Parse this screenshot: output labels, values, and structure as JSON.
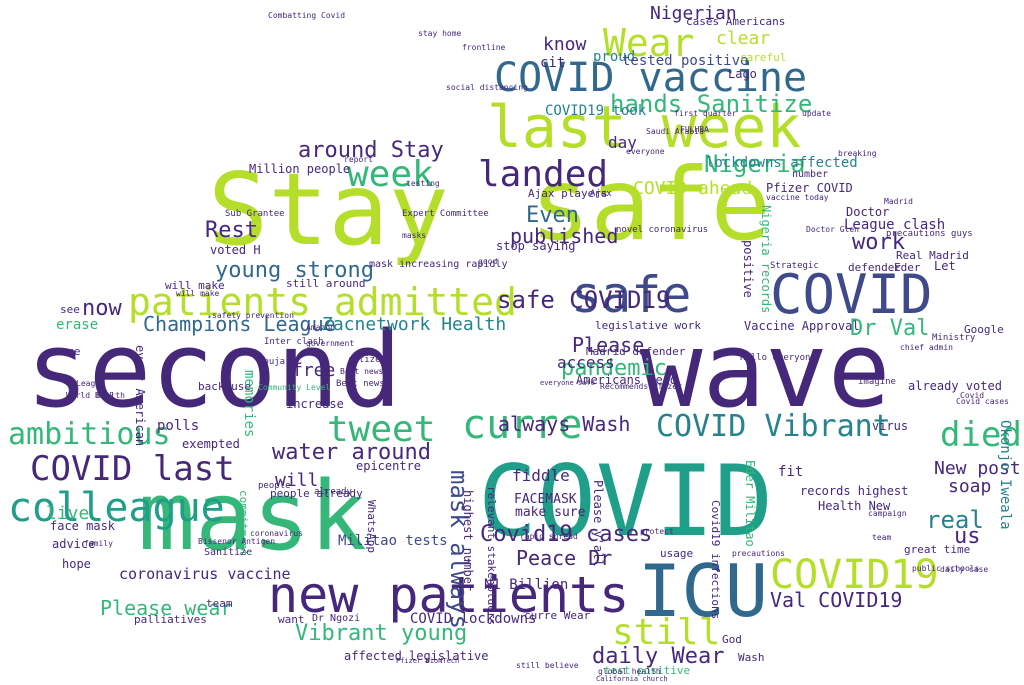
{
  "palette": {
    "background": "#ffffff",
    "dark_purple": "#46287a",
    "indigo": "#3e4a89",
    "blue": "#31688e",
    "teal": "#26828e",
    "green_teal": "#1f9e89",
    "green": "#35b779",
    "lime_green": "#6ece58",
    "yellow_green": "#b5de2b",
    "yellow": "#d8e219"
  },
  "words": [
    {
      "text": "second"
    },
    {
      "text": "wave"
    },
    {
      "text": "Stay"
    },
    {
      "text": "safe"
    },
    {
      "text": "COVID"
    },
    {
      "text": "mask"
    },
    {
      "text": "last week"
    },
    {
      "text": "new patients"
    },
    {
      "text": "ICU"
    },
    {
      "text": "COVID vaccine"
    },
    {
      "text": "safe"
    },
    {
      "text": "COVID"
    },
    {
      "text": "patients admitted"
    },
    {
      "text": "week"
    },
    {
      "text": "landed"
    },
    {
      "text": "Wear"
    },
    {
      "text": "colleague"
    },
    {
      "text": "COVID19"
    },
    {
      "text": "curre"
    },
    {
      "text": "tweet"
    },
    {
      "text": "ambitious"
    },
    {
      "text": "COVID last"
    },
    {
      "text": "died"
    },
    {
      "text": "COVID Vibrant"
    },
    {
      "text": "still"
    },
    {
      "text": "young strong"
    },
    {
      "text": "hands Sanitize"
    },
    {
      "text": "Nigeria"
    },
    {
      "text": "around Stay"
    },
    {
      "text": "COVID ahead"
    },
    {
      "text": "Rest"
    },
    {
      "text": "Even"
    },
    {
      "text": "published"
    },
    {
      "text": "safe COVID19"
    },
    {
      "text": "work"
    },
    {
      "text": "Dr Val"
    },
    {
      "text": "pandemic"
    },
    {
      "text": "Please"
    },
    {
      "text": "always Wash"
    },
    {
      "text": "water around"
    },
    {
      "text": "Champions League"
    },
    {
      "text": "Zacnetwork Health"
    },
    {
      "text": "now"
    },
    {
      "text": "Covid19 cases"
    },
    {
      "text": "Peace Dr"
    },
    {
      "text": "Vibrant young"
    },
    {
      "text": "daily Wear"
    },
    {
      "text": "Please wear"
    },
    {
      "text": "Val COVID19"
    },
    {
      "text": "New post"
    },
    {
      "text": "soap"
    },
    {
      "text": "real"
    },
    {
      "text": "us"
    },
    {
      "text": "live"
    },
    {
      "text": "will"
    },
    {
      "text": "free"
    },
    {
      "text": "know"
    },
    {
      "text": "cit"
    },
    {
      "text": "proud"
    },
    {
      "text": "tested positive"
    },
    {
      "text": "Nigerian"
    },
    {
      "text": "clear"
    },
    {
      "text": "COVID19 took"
    },
    {
      "text": "day"
    },
    {
      "text": "lockdowns affected"
    },
    {
      "text": "League clash"
    },
    {
      "text": "Pfizer COVID"
    },
    {
      "text": "Doctor"
    },
    {
      "text": "Real Madrid"
    },
    {
      "text": "Vaccine Approval"
    },
    {
      "text": "mask always"
    },
    {
      "text": "COVID lockdowns"
    },
    {
      "text": "N1 Billion"
    },
    {
      "text": "FACEMASK"
    },
    {
      "text": "make sure"
    },
    {
      "text": "fiddle"
    },
    {
      "text": "access"
    },
    {
      "text": "Americans head"
    },
    {
      "text": "Madrid defender"
    },
    {
      "text": "legislative work"
    },
    {
      "text": "Health New"
    },
    {
      "text": "records highest"
    },
    {
      "text": "fit"
    },
    {
      "text": "coronavirus vaccine"
    },
    {
      "text": "face mask"
    },
    {
      "text": "memories"
    },
    {
      "text": "polls"
    },
    {
      "text": "people already"
    },
    {
      "text": "Militao tests"
    },
    {
      "text": "affected legislative"
    },
    {
      "text": "advice"
    },
    {
      "text": "hope"
    },
    {
      "text": "team"
    },
    {
      "text": "exempted"
    },
    {
      "text": "Million people"
    },
    {
      "text": "voted H"
    },
    {
      "text": "will make"
    },
    {
      "text": "see"
    },
    {
      "text": "come"
    },
    {
      "text": "back use"
    },
    {
      "text": "erase"
    },
    {
      "text": "already voted"
    },
    {
      "text": "virus"
    },
    {
      "text": "great time"
    },
    {
      "text": "Google"
    },
    {
      "text": "Let"
    },
    {
      "text": "Eder"
    },
    {
      "text": "defender"
    },
    {
      "text": "mask increasing rapidly"
    },
    {
      "text": "stop saying"
    },
    {
      "text": "highest number"
    },
    {
      "text": "relevant stakeholders"
    },
    {
      "text": "epicentre"
    },
    {
      "text": "increase"
    },
    {
      "text": "still around"
    },
    {
      "text": "Nigeria records"
    },
    {
      "text": "positive"
    },
    {
      "text": "Okonjo Iweala"
    },
    {
      "text": "Eder Militao"
    },
    {
      "text": "Covid19 infections"
    },
    {
      "text": "Please y'all"
    },
    {
      "text": "curre Wear"
    },
    {
      "text": "test positive"
    },
    {
      "text": "Wash"
    },
    {
      "text": "God"
    },
    {
      "text": "usage"
    },
    {
      "text": "want"
    },
    {
      "text": "Dr Ngozi"
    },
    {
      "text": "palliatives"
    },
    {
      "text": "every American"
    },
    {
      "text": "WhatsApp"
    },
    {
      "text": "commitment"
    },
    {
      "text": "Sanitize"
    },
    {
      "text": "Lago"
    },
    {
      "text": "cases Americans"
    },
    {
      "text": "careful"
    },
    {
      "text": "Ajax players"
    },
    {
      "text": "Expert Committee"
    },
    {
      "text": "Sub Grantee"
    },
    {
      "text": "novel coronavirus"
    },
    {
      "text": "precautions guys"
    },
    {
      "text": "Strategic"
    },
    {
      "text": "Best news"
    },
    {
      "text": "citizens"
    },
    {
      "text": "people"
    },
    {
      "text": "Amazon"
    },
    {
      "text": "safety prevention"
    },
    {
      "text": "Bissenor Antigen"
    },
    {
      "text": "coronavirus"
    },
    {
      "text": "already"
    },
    {
      "text": "Covid"
    },
    {
      "text": "campaign"
    },
    {
      "text": "number"
    },
    {
      "text": "Abuja"
    },
    {
      "text": "Inter clash"
    },
    {
      "text": "Community Level"
    },
    {
      "text": "public schools"
    },
    {
      "text": "Ministry"
    },
    {
      "text": "chief admin"
    },
    {
      "text": "imagine"
    },
    {
      "text": "Hello everyone"
    },
    {
      "text": "rapid spread"
    },
    {
      "text": "Combatting Covid"
    },
    {
      "text": "everyone"
    },
    {
      "text": "FULHBA"
    },
    {
      "text": "Saudi Arabia"
    },
    {
      "text": "first quarter"
    },
    {
      "text": "Doctor Glen"
    },
    {
      "text": "Ajax"
    },
    {
      "text": "team"
    },
    {
      "text": "Covid cases"
    },
    {
      "text": "precautions"
    },
    {
      "text": "Best news"
    },
    {
      "text": "daily case"
    },
    {
      "text": "will make"
    },
    {
      "text": "Recommends Pfizer"
    },
    {
      "text": "Madrid"
    },
    {
      "text": "League"
    },
    {
      "text": "health"
    },
    {
      "text": "World Bank"
    },
    {
      "text": "global health"
    },
    {
      "text": "protect"
    },
    {
      "text": "masks"
    },
    {
      "text": "testing"
    },
    {
      "text": "good"
    },
    {
      "text": "still believe"
    },
    {
      "text": "family"
    },
    {
      "text": "government"
    },
    {
      "text": "report"
    },
    {
      "text": "stay home"
    },
    {
      "text": "social distancing"
    },
    {
      "text": "vaccine today"
    },
    {
      "text": "breaking"
    },
    {
      "text": "California church"
    },
    {
      "text": "Pfizer BioNTech"
    },
    {
      "text": "everyone safe"
    },
    {
      "text": "frontline"
    },
    {
      "text": "update"
    }
  ]
}
